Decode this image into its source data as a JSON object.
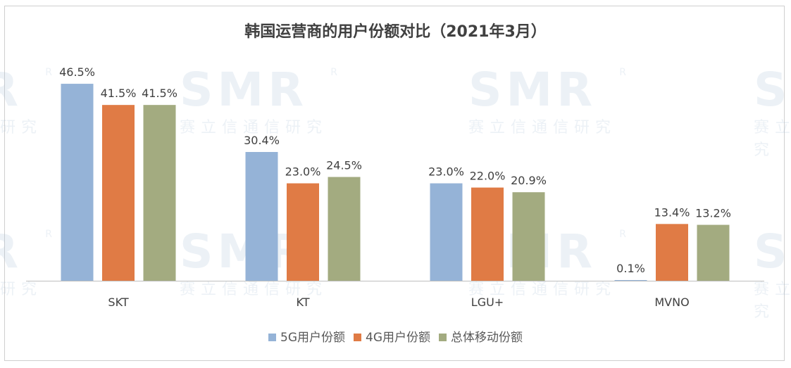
{
  "chart_data": {
    "type": "bar",
    "title": "韩国运营商的用户份额对比（2021年3月）",
    "categories": [
      "SKT",
      "KT",
      "LGU+",
      "MVNO"
    ],
    "series": [
      {
        "name": "5G用户份额",
        "color": "#95b3d7",
        "values": [
          46.5,
          30.4,
          23.0,
          0.1
        ],
        "labels": [
          "46.5%",
          "30.4%",
          "23.0%",
          "0.1%"
        ]
      },
      {
        "name": "4G用户份额",
        "color": "#e07b45",
        "values": [
          41.5,
          23.0,
          22.0,
          13.4
        ],
        "labels": [
          "41.5%",
          "23.0%",
          "22.0%",
          "13.4%"
        ]
      },
      {
        "name": "总体移动份额",
        "color": "#a3ab80",
        "values": [
          41.5,
          24.5,
          20.9,
          13.2
        ],
        "labels": [
          "41.5%",
          "24.5%",
          "20.9%",
          "13.2%"
        ]
      }
    ],
    "ylim": [
      0,
      50
    ],
    "grid": false,
    "legend_position": "bottom"
  },
  "watermark": {
    "logo": "SMR",
    "mark": "R",
    "text": "赛立信通信研究"
  }
}
